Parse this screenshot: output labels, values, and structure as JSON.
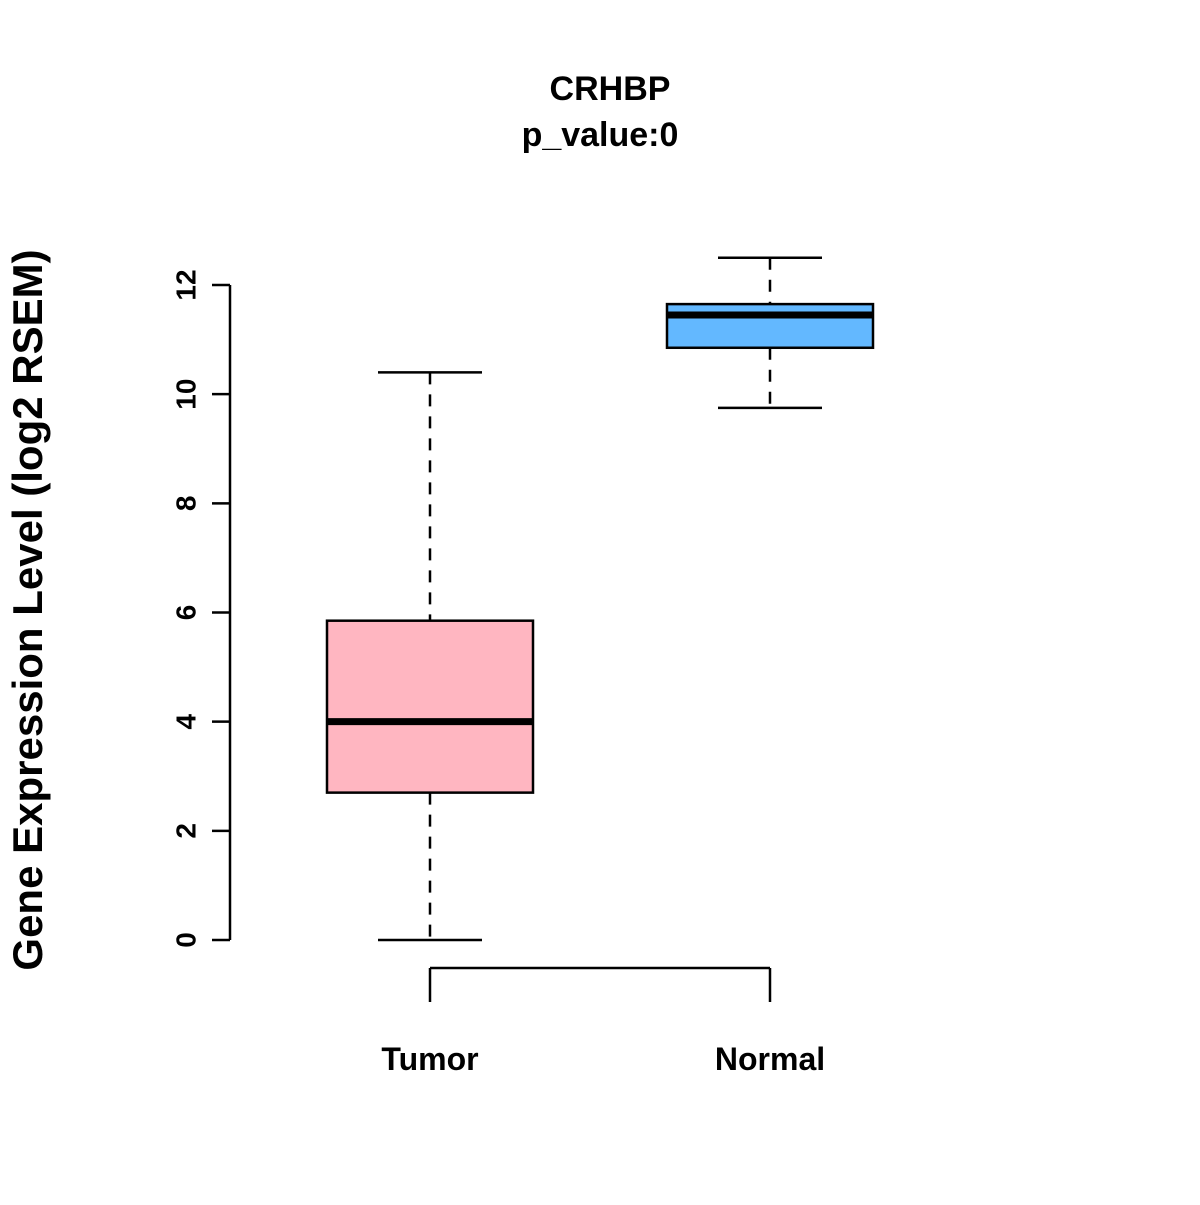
{
  "chart_data": {
    "type": "boxplot",
    "title": "CRHBP",
    "subtitle": "p_value:0",
    "ylabel": "Gene Expression Level (log2 RSEM)",
    "xlabel": "",
    "ylim": [
      0,
      12.5
    ],
    "yticks": [
      0,
      2,
      4,
      6,
      8,
      10,
      12
    ],
    "grid": false,
    "legend": "none",
    "categories": [
      {
        "label": "Tumor",
        "color": "#FFB6C1",
        "whisker_low": 0.0,
        "q1": 2.7,
        "median": 4.0,
        "q3": 5.85,
        "whisker_high": 10.4
      },
      {
        "label": "Normal",
        "color": "#63B8FF",
        "whisker_low": 9.75,
        "q1": 10.85,
        "median": 11.45,
        "q3": 11.65,
        "whisker_high": 12.5
      }
    ]
  }
}
